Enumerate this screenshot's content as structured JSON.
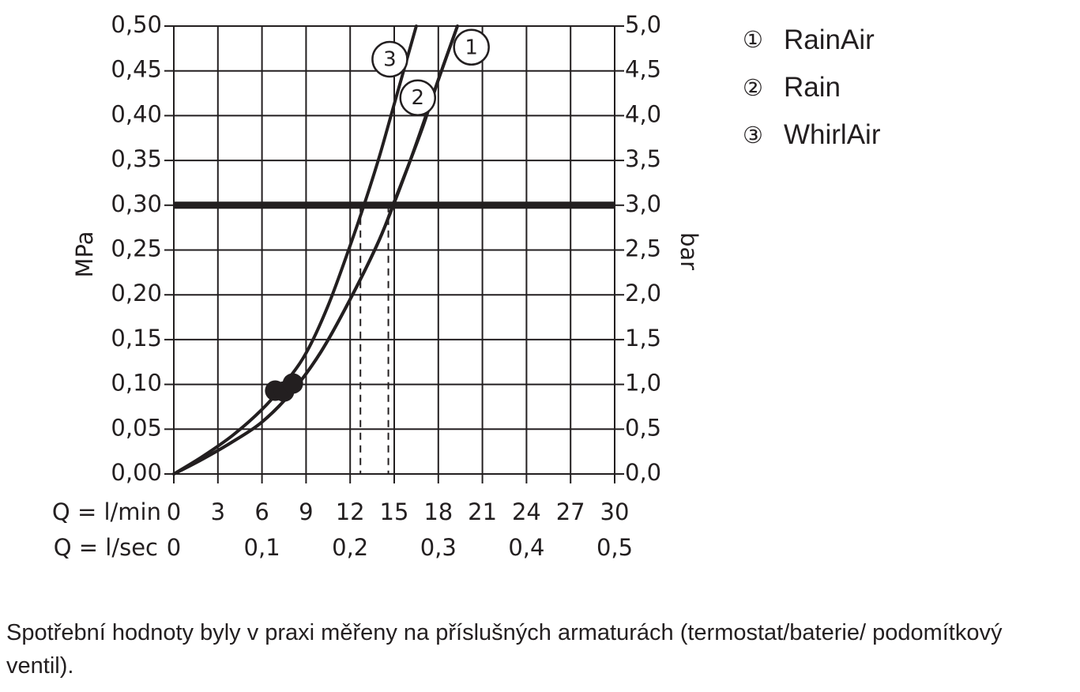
{
  "chart_data": {
    "type": "line",
    "left_axis": {
      "label": "MPa",
      "ylim": [
        0,
        0.5
      ],
      "ticks": [
        0,
        0.05,
        0.1,
        0.15,
        0.2,
        0.25,
        0.3,
        0.35,
        0.4,
        0.45,
        0.5
      ],
      "tick_labels": [
        "0,00",
        "0,05",
        "0,10",
        "0,15",
        "0,20",
        "0,25",
        "0,30",
        "0,35",
        "0,40",
        "0,45",
        "0,50"
      ]
    },
    "right_axis": {
      "label": "bar",
      "ylim": [
        0,
        5
      ],
      "tick_labels": [
        "0,0",
        "0,5",
        "1,0",
        "1,5",
        "2,0",
        "2,5",
        "3,0",
        "3,5",
        "4,0",
        "4,5",
        "5,0"
      ]
    },
    "x_axis_lmin": {
      "row_label": "Q = l/min",
      "xlim": [
        0,
        30
      ],
      "ticks": [
        0,
        3,
        6,
        9,
        12,
        15,
        18,
        21,
        24,
        27,
        30
      ],
      "tick_labels": [
        "0",
        "3",
        "6",
        "9",
        "12",
        "15",
        "18",
        "21",
        "24",
        "27",
        "30"
      ]
    },
    "x_axis_lsec": {
      "row_label": "Q = l/sec",
      "ticks": [
        0,
        0.1,
        0.2,
        0.3,
        0.4,
        0.5
      ],
      "tick_labels": [
        "0",
        "0,1",
        "0,2",
        "0,3",
        "0,4",
        "0,5"
      ]
    },
    "grid": true,
    "reference_line": {
      "y": 0.3
    },
    "series": [
      {
        "name": "RainAir",
        "marker": "1",
        "x": [
          0,
          2,
          4,
          6,
          8,
          10,
          12,
          14,
          16,
          18,
          19.3
        ],
        "y": [
          0,
          0.017,
          0.036,
          0.058,
          0.091,
          0.136,
          0.195,
          0.262,
          0.346,
          0.44,
          0.5
        ]
      },
      {
        "name": "Rain",
        "marker": "2",
        "x": [
          0,
          2,
          4,
          6,
          8,
          10,
          12,
          14,
          15,
          16,
          17,
          18,
          19.3
        ],
        "y": [
          0,
          0.017,
          0.036,
          0.058,
          0.091,
          0.136,
          0.195,
          0.262,
          0.304,
          0.346,
          0.39,
          0.44,
          0.5
        ]
      },
      {
        "name": "WhirlAir",
        "marker": "3",
        "x": [
          0,
          2,
          4,
          6,
          7.5,
          9,
          10.5,
          12,
          13,
          14,
          15,
          16.5
        ],
        "y": [
          0,
          0.02,
          0.043,
          0.072,
          0.1,
          0.135,
          0.188,
          0.255,
          0.303,
          0.355,
          0.413,
          0.5
        ]
      }
    ],
    "operating_points": [
      {
        "series": "WhirlAir",
        "x": 12.7,
        "y": 0.3
      },
      {
        "series": "Rain",
        "x": 14.6,
        "y": 0.3
      }
    ],
    "min_pressure_points": [
      {
        "x": 6.9,
        "y": 0.093
      },
      {
        "x": 7.5,
        "y": 0.092
      },
      {
        "x": 8.1,
        "y": 0.101
      }
    ]
  },
  "legend": [
    {
      "symbol": "①",
      "label": "RainAir"
    },
    {
      "symbol": "②",
      "label": "Rain"
    },
    {
      "symbol": "③",
      "label": "WhirlAir"
    }
  ],
  "footnote": "Spotřební hodnoty byly v praxi měřeny na příslušných armaturách (termostat/baterie/ podomítkový ventil)."
}
